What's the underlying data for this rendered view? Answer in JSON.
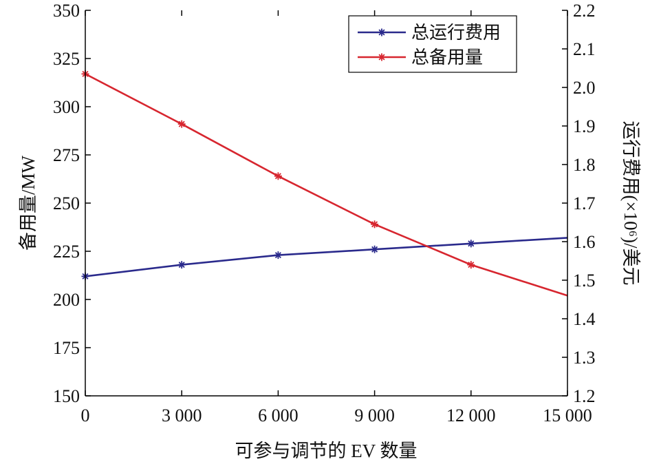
{
  "chart_data": {
    "type": "line",
    "title": "",
    "xlabel": "可参与调节的 EV 数量",
    "ylabel_left": "备用量/MW",
    "ylabel_right": "运行费用(×10⁶)/美元",
    "x_ticks": [
      0,
      3000,
      6000,
      9000,
      12000,
      15000
    ],
    "x_tick_labels": [
      "0",
      "3 000",
      "6 000",
      "9 000",
      "12 000",
      "15 000"
    ],
    "xlim": [
      0,
      15000
    ],
    "ylim_left": [
      150,
      350
    ],
    "y_left_ticks": [
      150,
      175,
      200,
      225,
      250,
      275,
      300,
      325,
      350
    ],
    "y_left_tick_labels": [
      "150",
      "175",
      "200",
      "225",
      "250",
      "275",
      "300",
      "325",
      "350"
    ],
    "ylim_right": [
      1.2,
      2.2
    ],
    "y_right_ticks": [
      1.2,
      1.3,
      1.4,
      1.5,
      1.6,
      1.7,
      1.8,
      1.9,
      2.0,
      2.1,
      2.2
    ],
    "y_right_tick_labels": [
      "1.2",
      "1.3",
      "1.4",
      "1.5",
      "1.6",
      "1.7",
      "1.8",
      "1.9",
      "2.0",
      "2.1",
      "2.2"
    ],
    "grid": false,
    "legend_position": "top-right",
    "series": [
      {
        "name": "总运行费用",
        "axis": "right",
        "color": "#2a2a8c",
        "marker": "asterisk",
        "x": [
          0,
          3000,
          6000,
          9000,
          12000,
          15000
        ],
        "y": [
          1.51,
          1.54,
          1.565,
          1.58,
          1.595,
          1.61
        ],
        "marker_x": [
          0,
          3000,
          6000,
          9000,
          12000
        ]
      },
      {
        "name": "总备用量",
        "axis": "left",
        "color": "#d7262f",
        "marker": "asterisk",
        "x": [
          0,
          3000,
          6000,
          9000,
          12000,
          15000
        ],
        "y": [
          317,
          291,
          264,
          239,
          218,
          202
        ],
        "marker_x": [
          0,
          3000,
          6000,
          9000,
          12000
        ]
      }
    ]
  }
}
